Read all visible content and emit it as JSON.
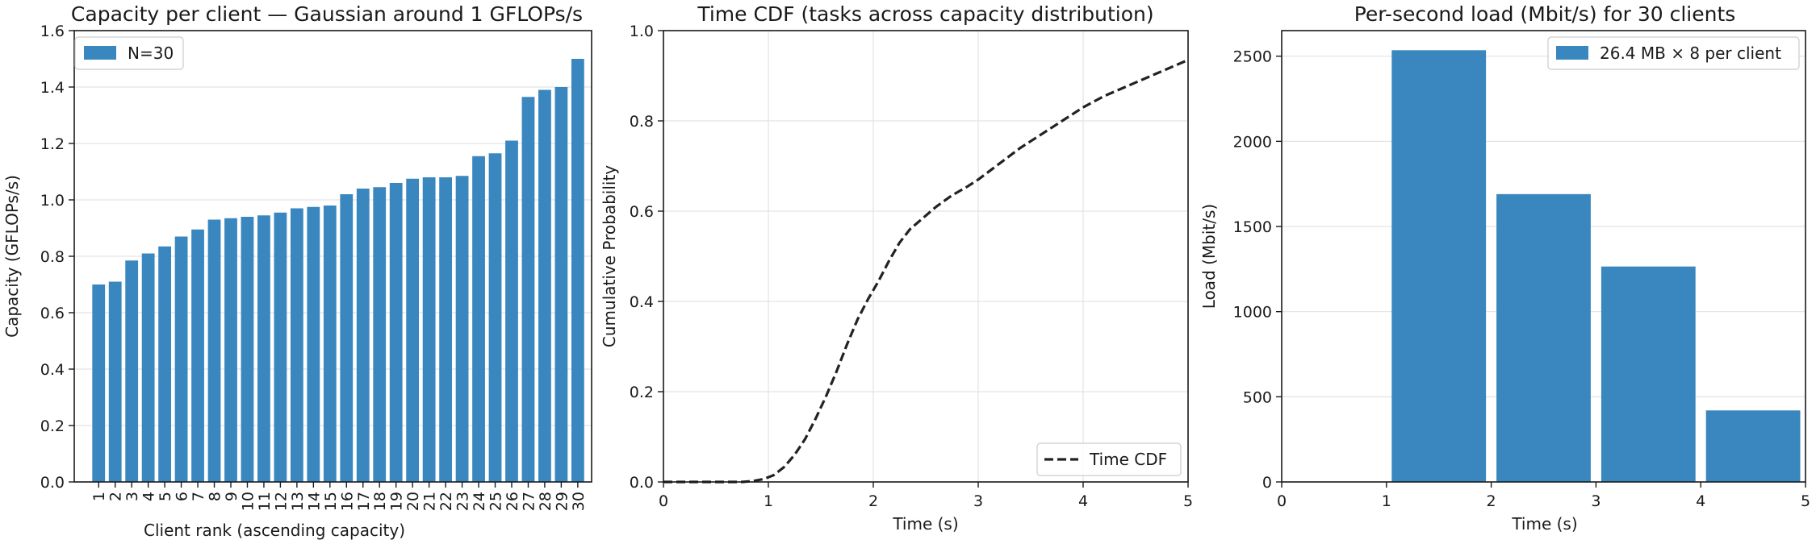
{
  "chart_data": [
    {
      "type": "bar",
      "title": "Capacity per client — Gaussian around 1 GFLOPs/s",
      "xlabel": "Client rank (ascending capacity)",
      "ylabel": "Capacity (GFLOPs/s)",
      "ylim": [
        0,
        1.6
      ],
      "yticks": [
        "0.0",
        "0.2",
        "0.4",
        "0.6",
        "0.8",
        "1.0",
        "1.2",
        "1.4",
        "1.6"
      ],
      "categories": [
        "1",
        "2",
        "3",
        "4",
        "5",
        "6",
        "7",
        "8",
        "9",
        "10",
        "11",
        "12",
        "13",
        "14",
        "15",
        "16",
        "17",
        "18",
        "19",
        "20",
        "21",
        "22",
        "23",
        "24",
        "25",
        "26",
        "27",
        "28",
        "29",
        "30"
      ],
      "series": [
        {
          "name": "N=30",
          "color": "#3a87c0",
          "values": [
            0.7,
            0.71,
            0.785,
            0.81,
            0.835,
            0.87,
            0.895,
            0.93,
            0.935,
            0.94,
            0.945,
            0.955,
            0.97,
            0.975,
            0.98,
            1.02,
            1.04,
            1.045,
            1.06,
            1.075,
            1.08,
            1.08,
            1.085,
            1.155,
            1.165,
            1.21,
            1.365,
            1.39,
            1.4,
            1.5
          ]
        }
      ],
      "grid": "horizontal",
      "legend": "top-left"
    },
    {
      "type": "line",
      "title": "Time CDF (tasks across capacity distribution)",
      "xlabel": "Time (s)",
      "ylabel": "Cumulative Probability",
      "xlim": [
        0,
        5
      ],
      "ylim": [
        0,
        1.0
      ],
      "xticks": [
        "0",
        "1",
        "2",
        "3",
        "4",
        "5"
      ],
      "yticks": [
        "0.0",
        "0.2",
        "0.4",
        "0.6",
        "0.8",
        "1.0"
      ],
      "series": [
        {
          "name": "Time CDF",
          "color": "#222222",
          "style": "dashed",
          "x": [
            0,
            0.75,
            0.85,
            0.95,
            1.05,
            1.15,
            1.25,
            1.35,
            1.45,
            1.55,
            1.65,
            1.75,
            1.85,
            1.95,
            2.05,
            2.15,
            2.25,
            2.35,
            2.45,
            2.6,
            2.75,
            2.9,
            3.0,
            3.2,
            3.4,
            3.6,
            3.8,
            4.0,
            4.2,
            4.4,
            4.6,
            4.8,
            5.0
          ],
          "y": [
            0,
            0,
            0.002,
            0.006,
            0.015,
            0.033,
            0.06,
            0.095,
            0.14,
            0.19,
            0.245,
            0.305,
            0.36,
            0.405,
            0.445,
            0.49,
            0.53,
            0.56,
            0.58,
            0.61,
            0.635,
            0.655,
            0.67,
            0.705,
            0.74,
            0.77,
            0.8,
            0.83,
            0.855,
            0.875,
            0.895,
            0.915,
            0.935
          ]
        }
      ],
      "grid": "both",
      "legend": "bottom-right"
    },
    {
      "type": "bar",
      "title": "Per-second load (Mbit/s) for 30 clients",
      "xlabel": "Time (s)",
      "ylabel": "Load (Mbit/s)",
      "xlim": [
        0,
        5
      ],
      "ylim": [
        0,
        2650
      ],
      "xticks": [
        "0",
        "1",
        "2",
        "3",
        "4",
        "5"
      ],
      "yticks": [
        "0",
        "500",
        "1000",
        "1500",
        "2000",
        "2500"
      ],
      "series": [
        {
          "name": "26.4 MB × 8 per client",
          "color": "#3a87c0",
          "bins": [
            {
              "x0": 0,
              "x1": 1,
              "value": 0
            },
            {
              "x0": 1,
              "x1": 2,
              "value": 2535
            },
            {
              "x0": 2,
              "x1": 3,
              "value": 1690
            },
            {
              "x0": 3,
              "x1": 4,
              "value": 1265
            },
            {
              "x0": 4,
              "x1": 5,
              "value": 420
            }
          ]
        }
      ],
      "grid": "horizontal",
      "legend": "top-right"
    }
  ]
}
